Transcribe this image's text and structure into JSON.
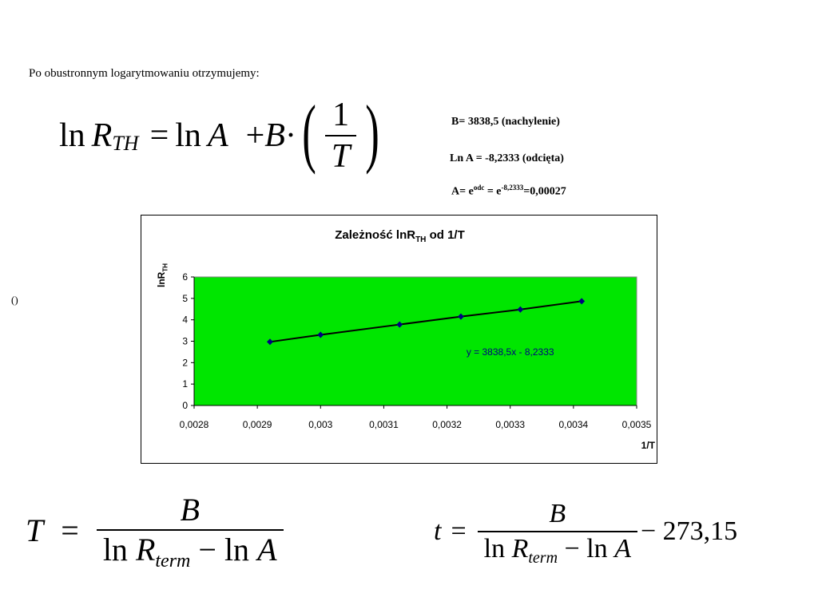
{
  "intro_text": "Po obustronnym logarytmowaniu otrzymujemy:",
  "side_paren": "()",
  "formula_main": {
    "ln1": "ln",
    "R": "R",
    "R_sub": "TH",
    "eq": "=",
    "ln2": "ln",
    "A": "A",
    "plus": "+",
    "B": "B",
    "dot": "·",
    "num": "1",
    "den": "T",
    "lparen": "(",
    "rparen": ")"
  },
  "notes": {
    "slope": "B= 3838,5 (nachylenie)",
    "intercept": "Ln A = -8,2333 (odcięta)",
    "a_prefix": "A= e",
    "a_sup1": "odc",
    "a_mid": " = e",
    "a_sup2": "-8,2333",
    "a_suffix": "=0,00027"
  },
  "chart_data": {
    "type": "scatter",
    "title_main": "Zależność lnR",
    "title_sub": "TH",
    "title_tail": " od 1/T",
    "ylabel_main": "lnR",
    "ylabel_sub": "TH",
    "xlabel": "1/T",
    "xlim": [
      0.0028,
      0.0035
    ],
    "ylim": [
      0,
      6
    ],
    "x_ticks": [
      "0,0028",
      "0,0029",
      "0,003",
      "0,0031",
      "0,0032",
      "0,0033",
      "0,0034",
      "0,0035"
    ],
    "y_ticks": [
      "0",
      "1",
      "2",
      "3",
      "4",
      "5",
      "6"
    ],
    "plot_background": "#00e600",
    "series": [
      {
        "x": [
          0.00292,
          0.003,
          0.003125,
          0.003222,
          0.003316,
          0.003413
        ],
        "y": [
          2.97,
          3.3,
          3.78,
          4.15,
          4.48,
          4.87
        ],
        "marker_color": "#000080",
        "line_color": "#000000"
      }
    ],
    "trendline_label": "y = 3838,5x - 8,2333",
    "trendline_color": "#000080"
  },
  "formula_T": {
    "lhs": "T",
    "eq": "=",
    "num": "B",
    "ln1": "ln",
    "R": "R",
    "R_sub": "term",
    "minus": "−",
    "ln2": "ln",
    "A": "A"
  },
  "formula_t": {
    "lhs": "t",
    "eq": "=",
    "num": "B",
    "ln1": "ln",
    "R": "R",
    "R_sub": "term",
    "minus": "−",
    "ln2": "ln",
    "A": "A",
    "tail": "− 273,15"
  }
}
